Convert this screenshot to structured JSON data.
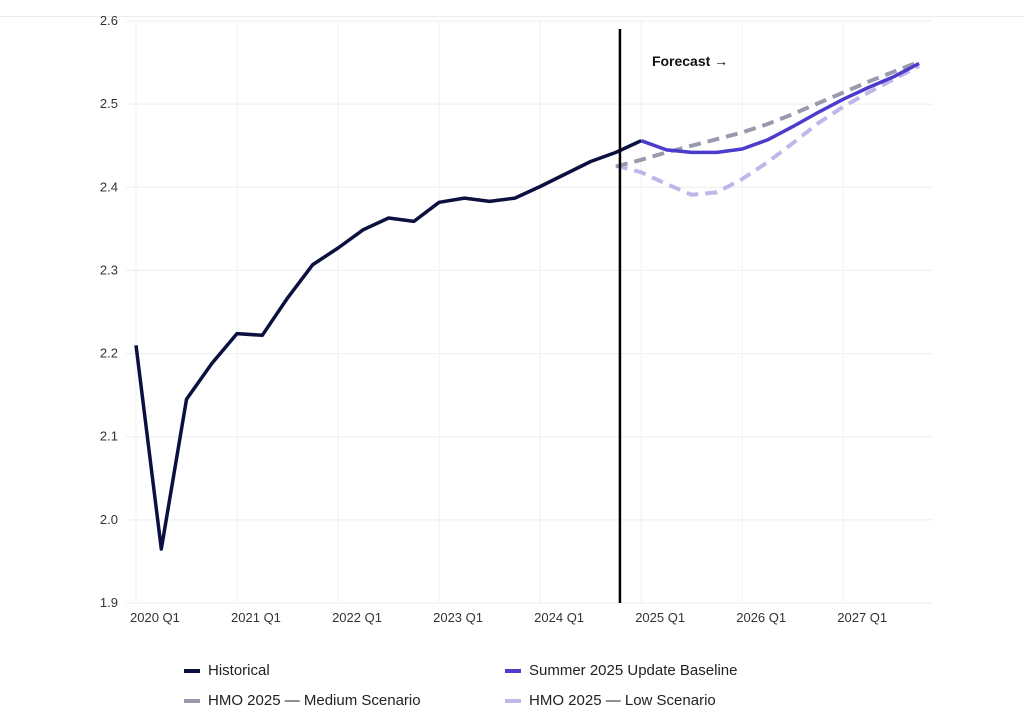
{
  "chart_data": {
    "type": "line",
    "title": "",
    "xlabel": "",
    "ylabel": "",
    "ylim": [
      1.9,
      2.6
    ],
    "yticks": [
      "1.9",
      "2.0",
      "2.1",
      "2.2",
      "2.3",
      "2.4",
      "2.5",
      "2.6"
    ],
    "xticks": [
      "2020 Q1",
      "2021 Q1",
      "2022 Q1",
      "2023 Q1",
      "2024 Q1",
      "2025 Q1",
      "2026 Q1",
      "2027 Q1"
    ],
    "grid": true,
    "forecast_marker": {
      "quarter_index": 19,
      "label": "Forecast →"
    },
    "series": [
      {
        "name": "Historical",
        "color": "#0c1040",
        "style": "solid",
        "start_index": 0,
        "values": [
          2.21,
          1.965,
          2.145,
          2.188,
          2.224,
          2.222,
          2.267,
          2.307,
          2.327,
          2.349,
          2.363,
          2.359,
          2.382,
          2.387,
          2.383,
          2.387,
          2.401,
          2.416,
          2.431,
          2.442,
          2.456
        ]
      },
      {
        "name": "Summer 2025 Update Baseline",
        "color": "#4b3ccc",
        "style": "solid",
        "start_index": 20,
        "values": [
          2.456,
          2.445,
          2.442,
          2.442,
          2.446,
          2.457,
          2.473,
          2.49,
          2.506,
          2.52,
          2.533,
          2.549
        ]
      },
      {
        "name": "HMO 2025 — Medium Scenario",
        "color": "#9a9aae",
        "style": "dashed",
        "start_index": 19,
        "values": [
          2.425,
          2.433,
          2.442,
          2.45,
          2.458,
          2.466,
          2.476,
          2.488,
          2.501,
          2.514,
          2.527,
          2.539,
          2.551
        ]
      },
      {
        "name": "HMO 2025 — Low Scenario",
        "color": "#bfb6ea",
        "style": "dashed",
        "start_index": 19,
        "values": [
          2.426,
          2.418,
          2.404,
          2.391,
          2.394,
          2.41,
          2.43,
          2.453,
          2.477,
          2.497,
          2.514,
          2.53,
          2.546
        ]
      }
    ]
  }
}
